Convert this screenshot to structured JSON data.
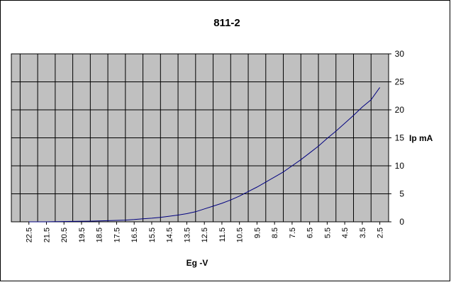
{
  "chart_data": {
    "type": "line",
    "title": "811-2",
    "xlabel": "Eg -V",
    "ylabel": "Ip mA",
    "x_reversed": true,
    "x_ticks": [
      22.5,
      21.5,
      20.5,
      19.5,
      18.5,
      17.5,
      16.5,
      15.5,
      14.5,
      13.5,
      12.5,
      11.5,
      10.5,
      9.5,
      8.5,
      7.5,
      6.5,
      5.5,
      4.5,
      3.5,
      2.5
    ],
    "x_tick_labels": [
      "22.5",
      "21.5",
      "20.5",
      "19.5",
      "18.5",
      "17.5",
      "16.5",
      "15.5",
      "14.5",
      "13.5",
      "12.5",
      "11.5",
      "10.5",
      "9.5",
      "8.5",
      "7.5",
      "6.5",
      "5.5",
      "4.5",
      "3.5",
      "2.5"
    ],
    "y_ticks": [
      0,
      5,
      10,
      15,
      20,
      25,
      30
    ],
    "y_tick_labels": [
      "0",
      "5",
      "10",
      "15",
      "20",
      "25",
      "30"
    ],
    "xlim": [
      23.5,
      2
    ],
    "ylim": [
      0,
      30
    ],
    "grid": true,
    "legend": "none",
    "colors": {
      "plot_background": "#c0c0c0",
      "gridline": "#000000",
      "series_line": "#000080",
      "frame_border": "#000000"
    },
    "series": [
      {
        "x": [
          22.5,
          22,
          21.5,
          21,
          20.5,
          20,
          19.5,
          19,
          18.5,
          18,
          17.5,
          17,
          16.5,
          16,
          15.5,
          15,
          14.5,
          14,
          13.5,
          13,
          12.5,
          12,
          11.5,
          11,
          10.5,
          10,
          9.5,
          9,
          8.5,
          8,
          7.5,
          7,
          6.5,
          6,
          5.5,
          5,
          4.5,
          4,
          3.5,
          3,
          2.5
        ],
        "values": [
          0,
          0,
          0,
          0.02,
          0.05,
          0.08,
          0.1,
          0.12,
          0.15,
          0.2,
          0.25,
          0.3,
          0.4,
          0.55,
          0.65,
          0.8,
          1.0,
          1.2,
          1.45,
          1.8,
          2.3,
          2.8,
          3.3,
          3.9,
          4.6,
          5.4,
          6.2,
          7.1,
          8.0,
          8.9,
          10.0,
          11.1,
          12.3,
          13.5,
          14.9,
          16.2,
          17.6,
          19.0,
          20.5,
          21.8,
          24.0
        ]
      }
    ]
  }
}
